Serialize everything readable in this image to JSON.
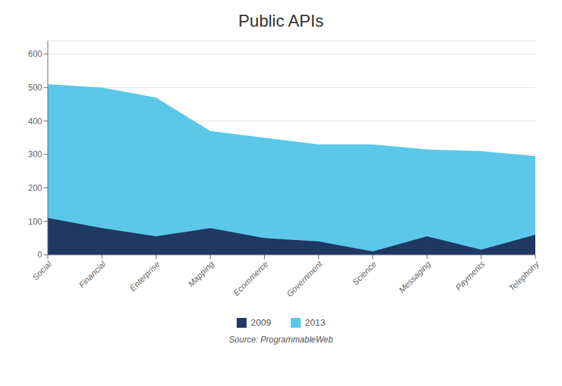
{
  "chart_data": {
    "type": "area",
    "title": "Public APIs",
    "categories": [
      "Social",
      "Financial",
      "Enterprise",
      "Mapping",
      "Ecommerce",
      "Government",
      "Science",
      "Messaging",
      "Payments",
      "Telephony"
    ],
    "series": [
      {
        "name": "2009",
        "color": "#1f3864",
        "values": [
          110,
          80,
          55,
          80,
          50,
          40,
          10,
          55,
          15,
          60
        ]
      },
      {
        "name": "2013",
        "color": "#5bc8e8",
        "values": [
          510,
          500,
          470,
          370,
          350,
          330,
          330,
          315,
          310,
          295
        ]
      }
    ],
    "ylim": [
      0,
      640
    ],
    "yticks": [
      0,
      100,
      200,
      300,
      400,
      500,
      600
    ],
    "grid": true,
    "stacked": false,
    "legend": "bottom",
    "annotations": [
      "Source: ProgrammableWeb"
    ]
  }
}
